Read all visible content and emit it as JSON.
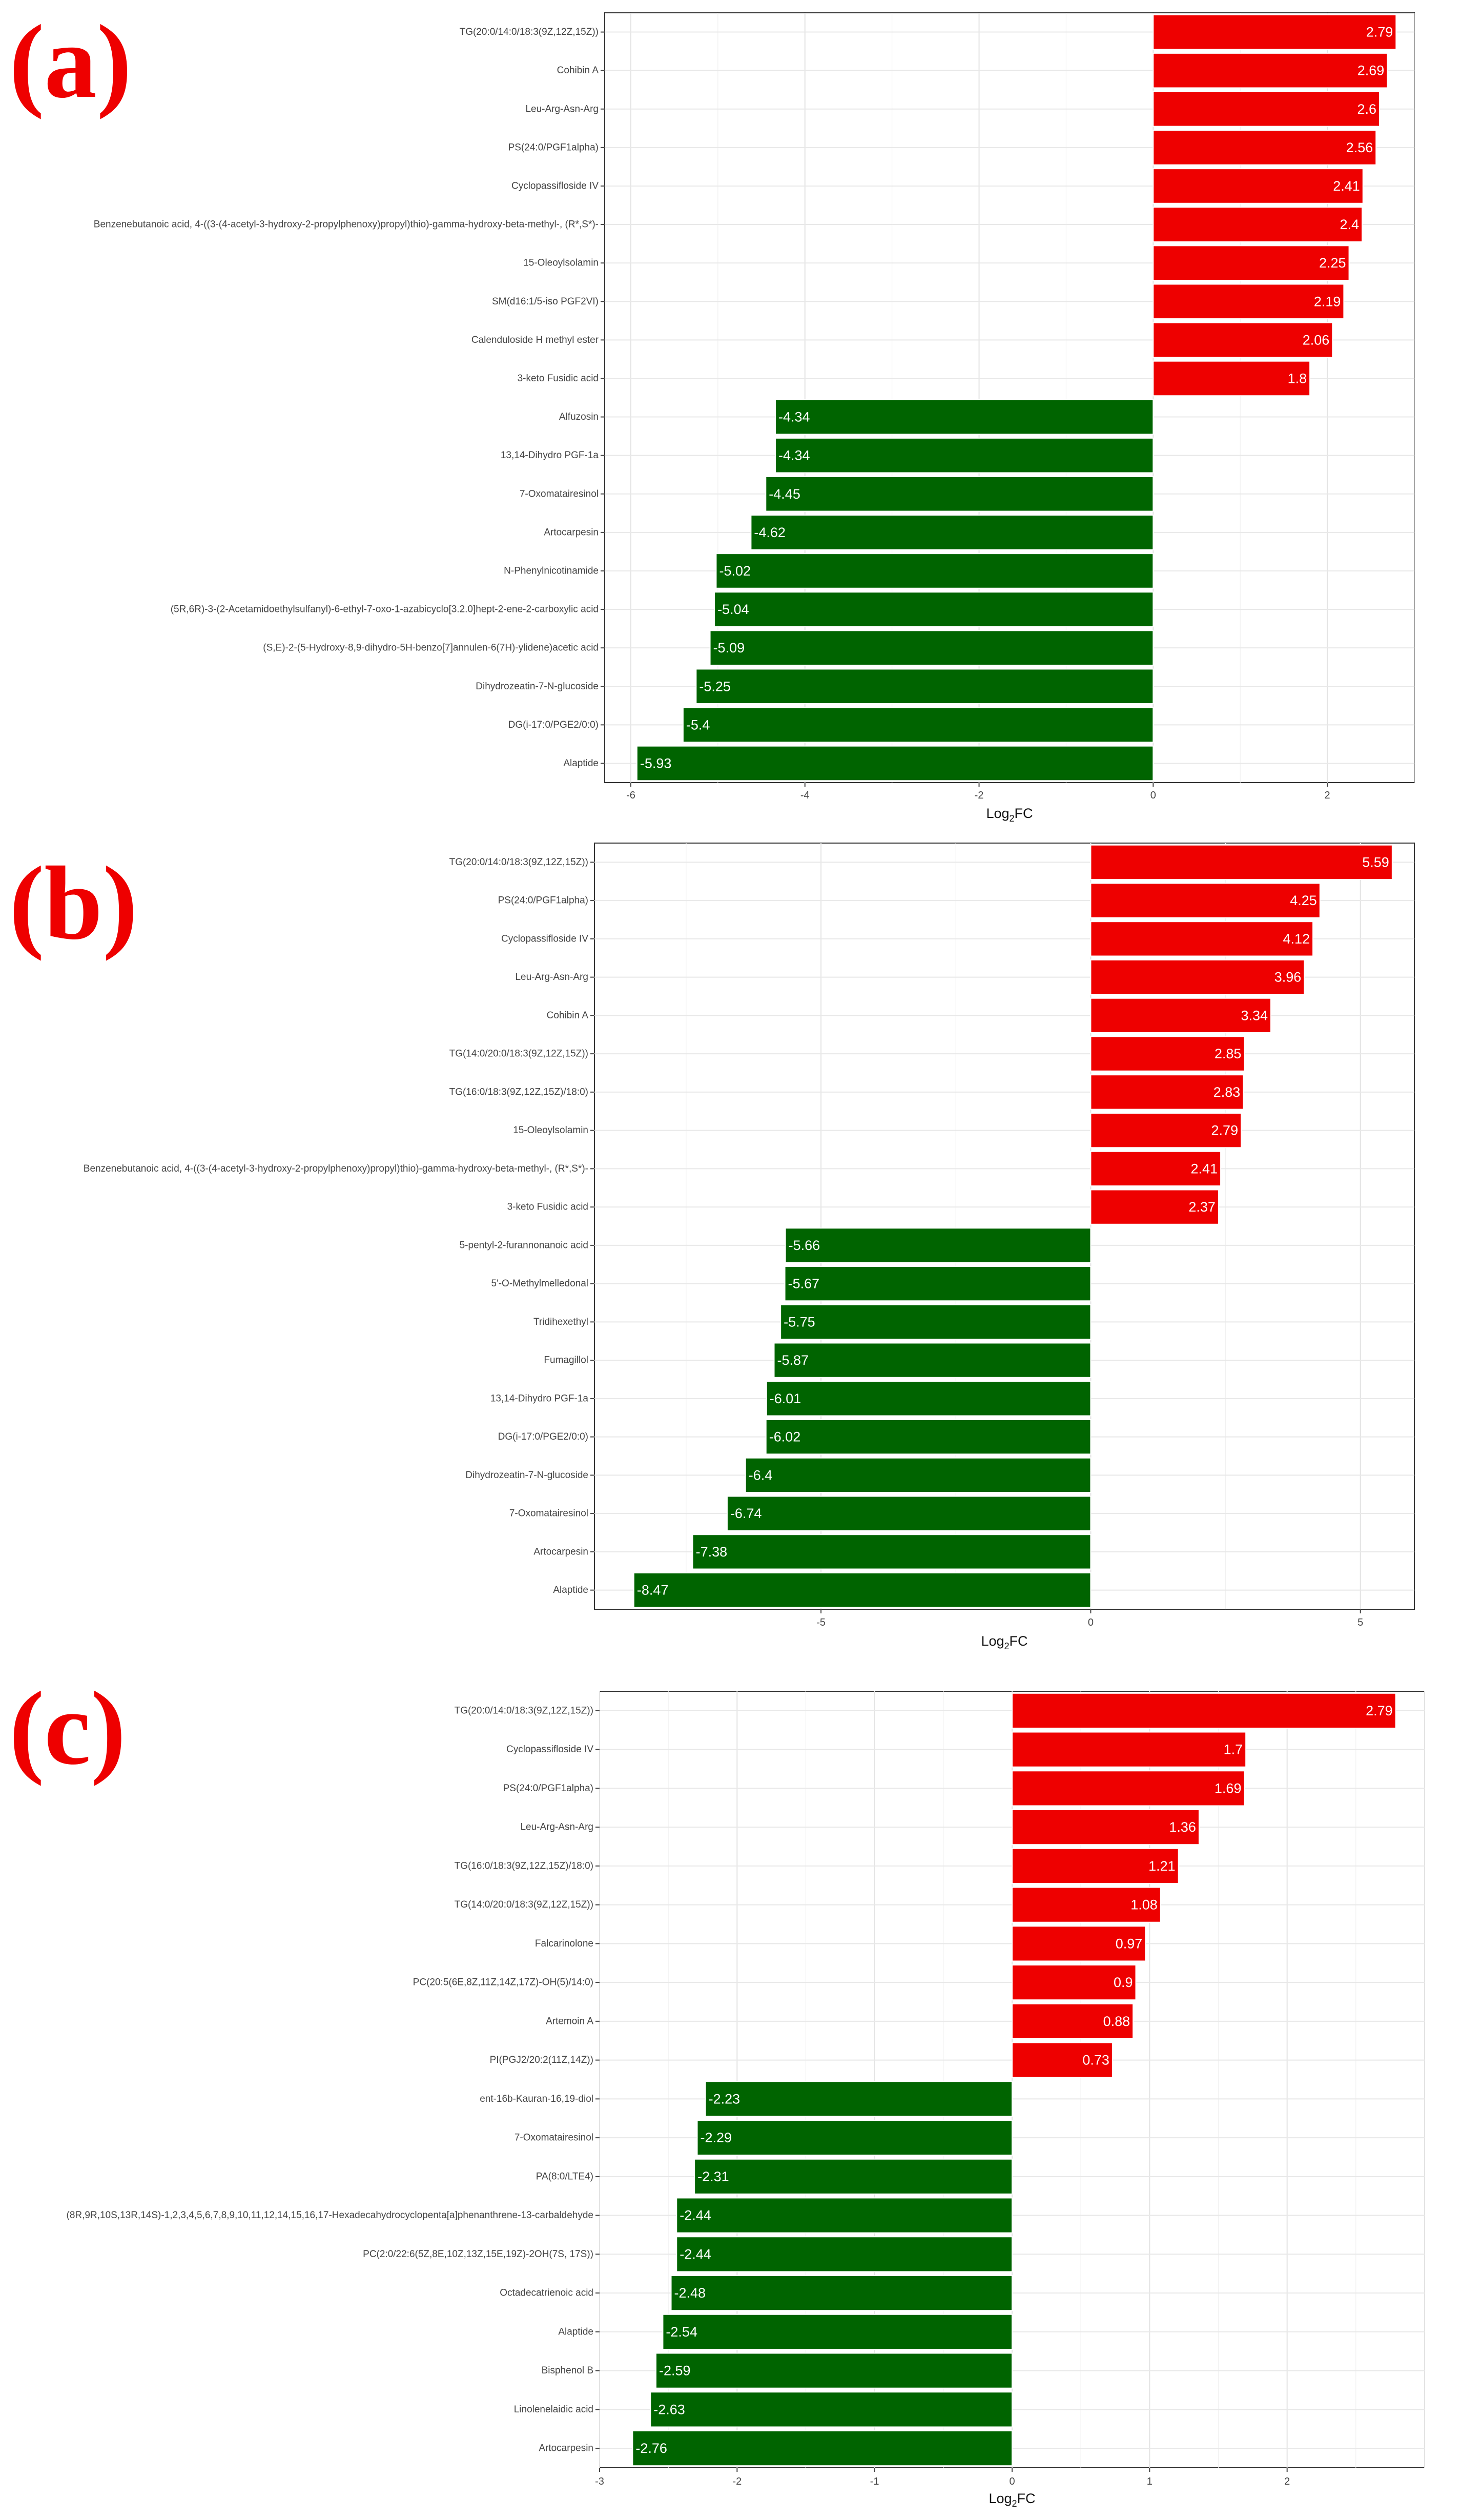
{
  "panels": [
    "(a)",
    "(b)",
    "(c)"
  ],
  "chart_data": [
    {
      "type": "bar",
      "orientation": "horizontal",
      "panel": "(a)",
      "categories": [
        "TG(20:0/14:0/18:3(9Z,12Z,15Z))",
        "Cohibin A",
        "Leu-Arg-Asn-Arg",
        "PS(24:0/PGF1alpha)",
        "Cyclopassifloside IV",
        "Benzenebutanoic acid, 4-((3-(4-acetyl-3-hydroxy-2-propylphenoxy)propyl)thio)-gamma-hydroxy-beta-methyl-, (R*,S*)-",
        "15-Oleoylsolamin",
        "SM(d16:1/5-iso PGF2VI)",
        "Calenduloside H methyl ester",
        "3-keto Fusidic acid",
        "Alfuzosin",
        "13,14-Dihydro PGF-1a",
        "7-Oxomatairesinol",
        "Artocarpesin",
        "N-Phenylnicotinamide",
        "(5R,6R)-3-(2-Acetamidoethylsulfanyl)-6-ethyl-7-oxo-1-azabicyclo[3.2.0]hept-2-ene-2-carboxylic acid",
        "(S,E)-2-(5-Hydroxy-8,9-dihydro-5H-benzo[7]annulen-6(7H)-ylidene)acetic acid",
        "Dihydrozeatin-7-N-glucoside",
        "DG(i-17:0/PGE2/0:0)",
        "Alaptide"
      ],
      "values": [
        2.79,
        2.69,
        2.6,
        2.56,
        2.41,
        2.4,
        2.25,
        2.19,
        2.06,
        1.8,
        -4.34,
        -4.34,
        -4.45,
        -4.62,
        -5.02,
        -5.04,
        -5.09,
        -5.25,
        -5.4,
        -5.93
      ],
      "value_labels": [
        "2.79",
        "2.69",
        "2.6",
        "2.56",
        "2.41",
        "2.4",
        "2.25",
        "2.19",
        "2.06",
        "1.8",
        "-4.34",
        "-4.34",
        "-4.45",
        "-4.62",
        "-5.02",
        "-5.04",
        "-5.09",
        "-5.25",
        "-5.4",
        "-5.93"
      ],
      "xlim": [
        -6.3,
        3.0
      ],
      "xticks": [
        -6,
        -4,
        -2,
        0,
        2
      ],
      "xlabel": "Log2FC",
      "ylabel": "",
      "grid": true,
      "colors": {
        "positive": "#ee0000",
        "negative": "#006400"
      }
    },
    {
      "type": "bar",
      "orientation": "horizontal",
      "panel": "(b)",
      "categories": [
        "TG(20:0/14:0/18:3(9Z,12Z,15Z))",
        "PS(24:0/PGF1alpha)",
        "Cyclopassifloside IV",
        "Leu-Arg-Asn-Arg",
        "Cohibin A",
        "TG(14:0/20:0/18:3(9Z,12Z,15Z))",
        "TG(16:0/18:3(9Z,12Z,15Z)/18:0)",
        "15-Oleoylsolamin",
        "Benzenebutanoic acid, 4-((3-(4-acetyl-3-hydroxy-2-propylphenoxy)propyl)thio)-gamma-hydroxy-beta-methyl-, (R*,S*)-",
        "3-keto Fusidic acid",
        "5-pentyl-2-furannonanoic acid",
        "5'-O-Methylmelledonal",
        "Tridihexethyl",
        "Fumagillol",
        "13,14-Dihydro PGF-1a",
        "DG(i-17:0/PGE2/0:0)",
        "Dihydrozeatin-7-N-glucoside",
        "7-Oxomatairesinol",
        "Artocarpesin",
        "Alaptide"
      ],
      "values": [
        5.59,
        4.25,
        4.12,
        3.96,
        3.34,
        2.85,
        2.83,
        2.79,
        2.41,
        2.37,
        -5.66,
        -5.67,
        -5.75,
        -5.87,
        -6.01,
        -6.02,
        -6.4,
        -6.74,
        -7.38,
        -8.47
      ],
      "value_labels": [
        "5.59",
        "4.25",
        "4.12",
        "3.96",
        "3.34",
        "2.85",
        "2.83",
        "2.79",
        "2.41",
        "2.37",
        "-5.66",
        "-5.67",
        "-5.75",
        "-5.87",
        "-6.01",
        "-6.02",
        "-6.4",
        "-6.74",
        "-7.38",
        "-8.47"
      ],
      "xlim": [
        -9.2,
        6.0
      ],
      "xticks": [
        -5,
        0,
        5
      ],
      "xlabel": "Log2FC",
      "ylabel": "",
      "grid": true,
      "colors": {
        "positive": "#ee0000",
        "negative": "#006400"
      }
    },
    {
      "type": "bar",
      "orientation": "horizontal",
      "panel": "(c)",
      "categories": [
        "TG(20:0/14:0/18:3(9Z,12Z,15Z))",
        "Cyclopassifloside IV",
        "PS(24:0/PGF1alpha)",
        "Leu-Arg-Asn-Arg",
        "TG(16:0/18:3(9Z,12Z,15Z)/18:0)",
        "TG(14:0/20:0/18:3(9Z,12Z,15Z))",
        "Falcarinolone",
        "PC(20:5(6E,8Z,11Z,14Z,17Z)-OH(5)/14:0)",
        "Artemoin A",
        "PI(PGJ2/20:2(11Z,14Z))",
        "ent-16b-Kauran-16,19-diol",
        "7-Oxomatairesinol",
        "PA(8:0/LTE4)",
        "(8R,9R,10S,13R,14S)-1,2,3,4,5,6,7,8,9,10,11,12,14,15,16,17-Hexadecahydrocyclopenta[a]phenanthrene-13-carbaldehyde",
        "PC(2:0/22:6(5Z,8E,10Z,13Z,15E,19Z)-2OH(7S, 17S))",
        "Octadecatrienoic acid",
        "Alaptide",
        "Bisphenol B",
        "Linolenelaidic acid",
        "Artocarpesin"
      ],
      "values": [
        2.79,
        1.7,
        1.69,
        1.36,
        1.21,
        1.08,
        0.97,
        0.9,
        0.88,
        0.73,
        -2.23,
        -2.29,
        -2.31,
        -2.44,
        -2.44,
        -2.48,
        -2.54,
        -2.59,
        -2.63,
        -2.76
      ],
      "value_labels": [
        "2.79",
        "1.7",
        "1.69",
        "1.36",
        "1.21",
        "1.08",
        "0.97",
        "0.9",
        "0.88",
        "0.73",
        "-2.23",
        "-2.29",
        "-2.31",
        "-2.44",
        "-2.44",
        "-2.48",
        "-2.54",
        "-2.59",
        "-2.63",
        "-2.76"
      ],
      "xlim": [
        -3.0,
        3.0
      ],
      "xticks": [
        -3,
        -2,
        -1,
        0,
        1,
        2
      ],
      "xlabel": "Log2FC",
      "ylabel": "",
      "grid": true,
      "colors": {
        "positive": "#ee0000",
        "negative": "#006400"
      }
    }
  ]
}
